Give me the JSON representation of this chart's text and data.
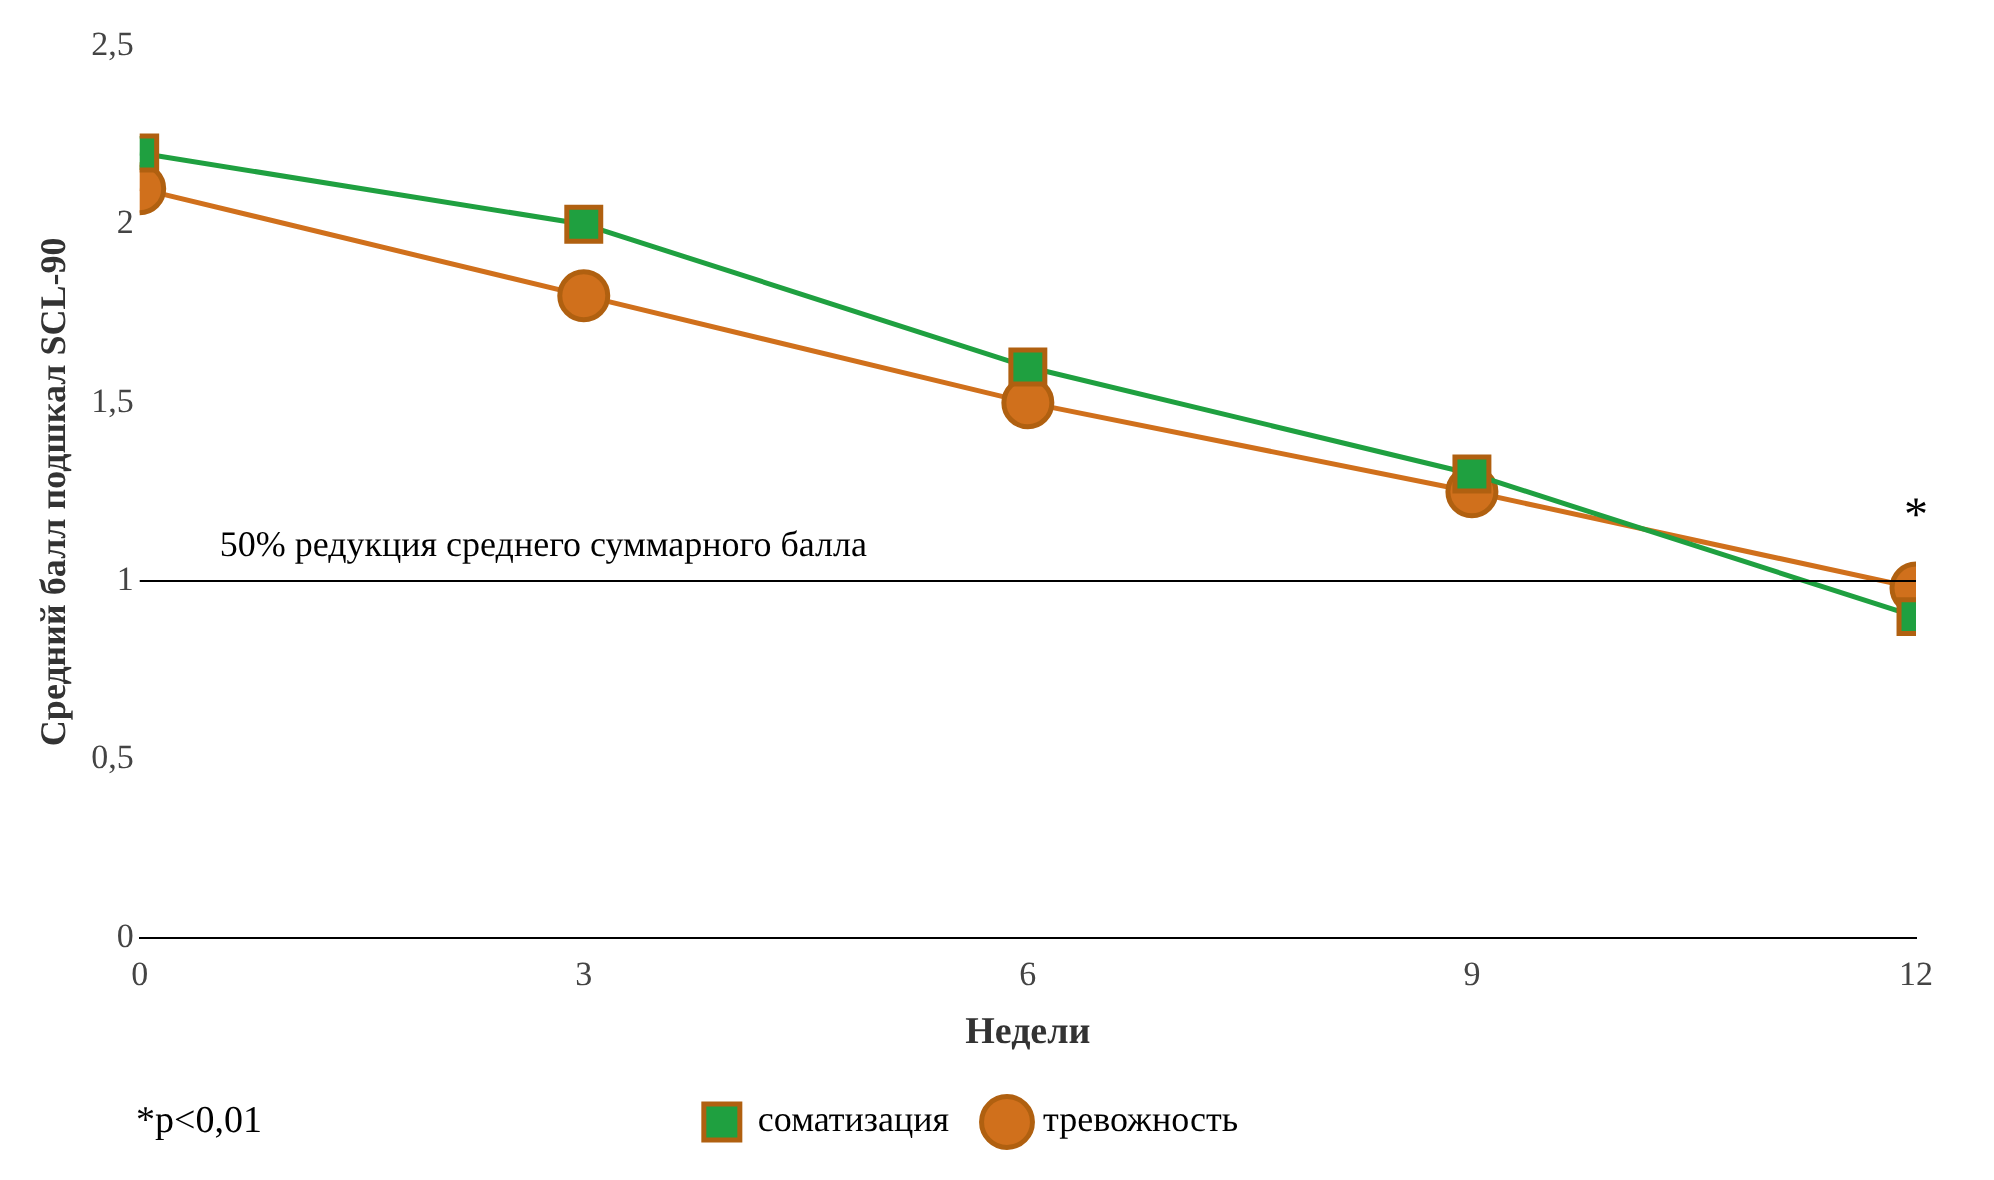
{
  "chart_data": {
    "type": "line",
    "xlabel": "Недели",
    "ylabel": "Средний балл подшкал SCL-90",
    "x": [
      0,
      3,
      6,
      9,
      12
    ],
    "series": [
      {
        "name": "тревожность",
        "color": "#d0701c",
        "marker": "circle",
        "values": [
          2.1,
          1.8,
          1.5,
          1.25,
          0.98
        ]
      },
      {
        "name": "соматизация",
        "color": "#1fa040",
        "marker": "square",
        "values": [
          2.2,
          2.0,
          1.6,
          1.3,
          0.9
        ]
      }
    ],
    "xlim": [
      0,
      12
    ],
    "xticks": [
      0,
      3,
      6,
      9,
      12
    ],
    "ylim": [
      0,
      2.5
    ],
    "yticks": [
      0,
      {
        "value": 0.5,
        "label": "0,5"
      },
      1,
      {
        "value": 1.5,
        "label": "1,5"
      },
      2,
      {
        "value": 2.5,
        "label": "2,5"
      }
    ],
    "ref_lines": [
      {
        "axis": "y",
        "value": 1,
        "label": "50% редукция среднего суммарного балла",
        "color": "#000000"
      }
    ],
    "annotations": [
      "*",
      "*p<0,01"
    ],
    "grid": false,
    "legend": "bottom",
    "line_style": "solid"
  }
}
